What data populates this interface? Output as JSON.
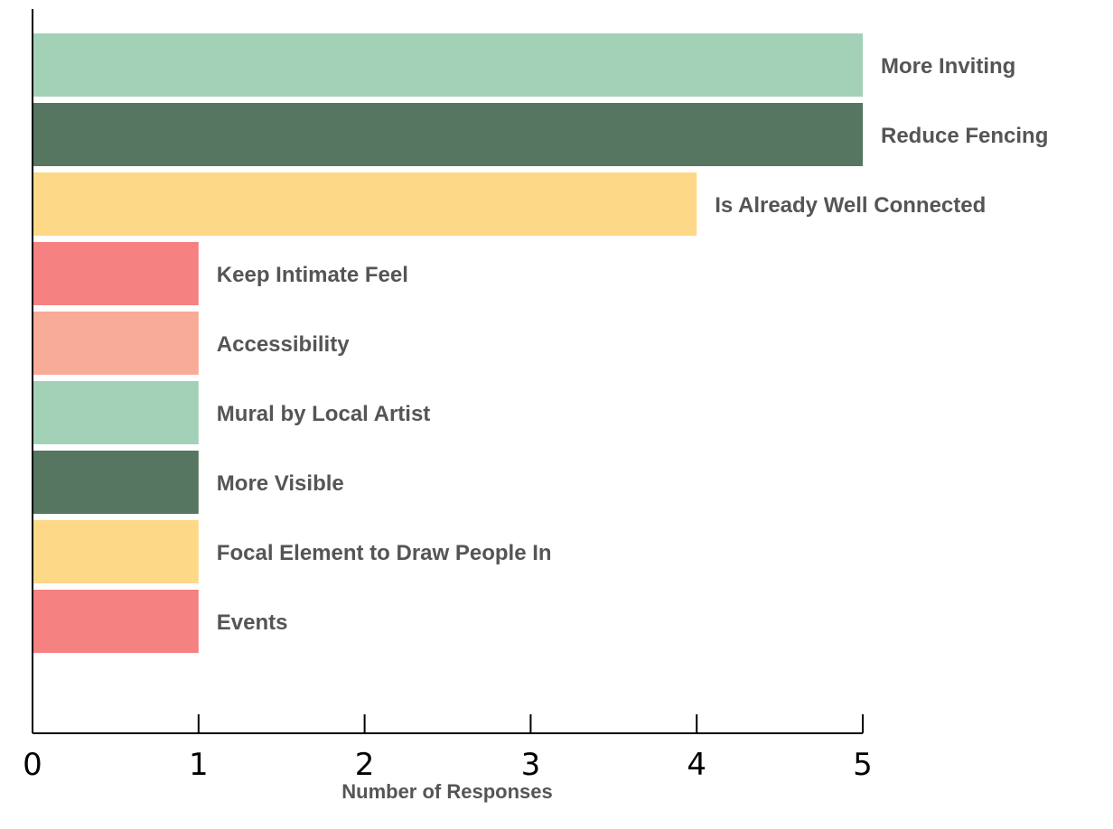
{
  "chart_data": {
    "type": "bar",
    "orientation": "horizontal",
    "categories": [
      "More Inviting",
      "Reduce Fencing",
      "Is Already Well Connected",
      "Keep Intimate Feel",
      "Accessibility",
      "Mural by Local Artist",
      "More Visible",
      "Focal Element to Draw People In",
      "Events"
    ],
    "values": [
      5,
      5,
      4,
      1,
      1,
      1,
      1,
      1,
      1
    ],
    "colors": [
      "#a3d1b8",
      "#567661",
      "#fdd886",
      "#f68181",
      "#f8ab96",
      "#a3d1b8",
      "#567661",
      "#fdd886",
      "#f68181"
    ],
    "xlabel": "Number of Responses",
    "ylabel": "",
    "title": "",
    "xlim": [
      0,
      5
    ],
    "xticks": [
      "0",
      "1",
      "2",
      "3",
      "4",
      "5"
    ],
    "grid": false,
    "legend": "none"
  }
}
